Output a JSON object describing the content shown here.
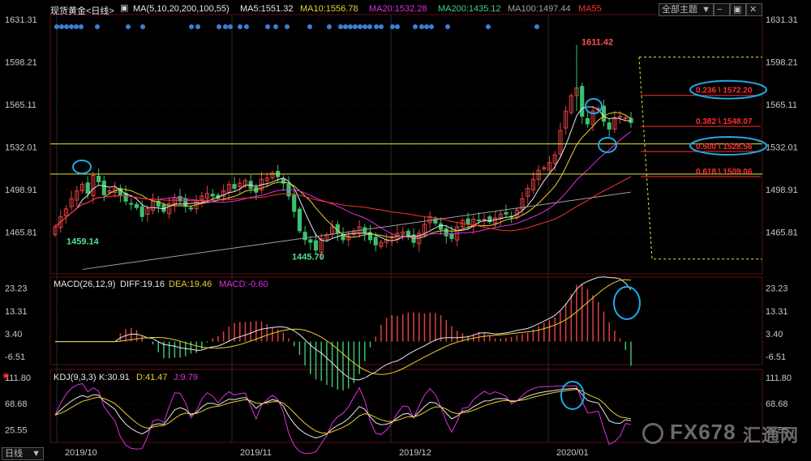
{
  "colors": {
    "up": "#e04040",
    "down": "#3cc070",
    "ma5": "#e8e8e8",
    "ma10": "#e8d030",
    "ma20": "#e030e0",
    "ma200": "#40d080",
    "ma100": "#a0a0a0",
    "ma55": "#ff3030",
    "fib": "#ff3030",
    "highlight": "#20a8e8",
    "yellow": "#e8e840"
  },
  "header": {
    "title": "现货黄金<日线>",
    "ma_label": "MA(5,10,20,200,100,55)",
    "ma5": "MA5:1551.32",
    "ma10": "MA10:1556.78",
    "ma20": "MA20:1532.28",
    "ma200": "MA200:1435.12",
    "ma100": "MA100:1497.44",
    "ma55": "MA55",
    "theme_button": "全部主题",
    "macd_label": "MACD(26,12,9)",
    "diff": "DIFF:19.16",
    "dea": "DEA:19.46",
    "macd": "MACD:-0.60",
    "kdj_label": "KDJ(9,3,3)",
    "k": "K:30.91",
    "d": "D:41.47",
    "j": "J:9.79",
    "bottom_tab": "日线"
  },
  "watermark": {
    "brand": "FX678",
    "cn": "汇通网"
  },
  "chart_data": [
    {
      "type": "candlestick",
      "title": "现货黄金<日线>",
      "price_ticks": [
        1631.31,
        1598.21,
        1565.11,
        1532.01,
        1498.91,
        1465.81
      ],
      "ylim": [
        1433.5,
        1635
      ],
      "x_labels": [
        "2019/10",
        "2019/11",
        "2019/12",
        "2020/01"
      ],
      "annotations": [
        {
          "label": "1611.42",
          "value": 1611.42,
          "kind": "high"
        },
        {
          "label": "1459.14",
          "value": 1459.14,
          "kind": "low"
        },
        {
          "label": "1445.70",
          "value": 1445.7,
          "kind": "low"
        }
      ],
      "fibonacci": [
        {
          "label": "0.236 \\ 1572.20",
          "value": 1572.2,
          "highlighted": true
        },
        {
          "label": "0.382 \\ 1548.07",
          "value": 1548.07,
          "highlighted": false
        },
        {
          "label": "0.500 \\ 1528.56",
          "value": 1528.56,
          "highlighted": true
        },
        {
          "label": "0.618 \\ 1509.06",
          "value": 1509.06,
          "highlighted": false
        }
      ],
      "horizontal_levels": [
        1534.5,
        1511
      ],
      "closes": [
        1470,
        1478,
        1484,
        1492,
        1498,
        1503,
        1496,
        1510,
        1505,
        1495,
        1498,
        1500,
        1495,
        1490,
        1488,
        1485,
        1478,
        1484,
        1490,
        1486,
        1482,
        1488,
        1493,
        1490,
        1486,
        1484,
        1490,
        1494,
        1496,
        1494,
        1492,
        1498,
        1503,
        1500,
        1504,
        1506,
        1500,
        1497,
        1507,
        1508,
        1512,
        1509,
        1504,
        1494,
        1482,
        1467,
        1460,
        1458,
        1452,
        1461,
        1464,
        1470,
        1465,
        1460,
        1463,
        1467,
        1470,
        1465,
        1460,
        1456,
        1458,
        1460,
        1462,
        1465,
        1466,
        1462,
        1458,
        1465,
        1472,
        1478,
        1473,
        1468,
        1463,
        1461,
        1470,
        1475,
        1472,
        1476,
        1475,
        1476,
        1474,
        1477,
        1480,
        1480,
        1478,
        1483,
        1492,
        1500,
        1507,
        1514,
        1516,
        1520,
        1526,
        1545,
        1560,
        1572,
        1578,
        1556,
        1550,
        1560,
        1562,
        1552,
        1546,
        1554,
        1556,
        1555,
        1551
      ]
    },
    {
      "type": "bar",
      "title": "MACD(26,12,9)",
      "y_ticks": [
        23.23,
        13.31,
        3.4,
        -6.51
      ],
      "ylim": [
        -10,
        28
      ],
      "series": [
        {
          "name": "DIFF",
          "value": 19.16
        },
        {
          "name": "DEA",
          "value": 19.46
        },
        {
          "name": "MACD",
          "value": -0.6
        }
      ]
    },
    {
      "type": "line",
      "title": "KDJ(9,3,3)",
      "y_ticks": [
        111.8,
        68.68,
        25.55
      ],
      "ylim": [
        5,
        125
      ],
      "series": [
        {
          "name": "K",
          "value": 30.91
        },
        {
          "name": "D",
          "value": 41.47
        },
        {
          "name": "J",
          "value": 9.79
        }
      ]
    }
  ]
}
